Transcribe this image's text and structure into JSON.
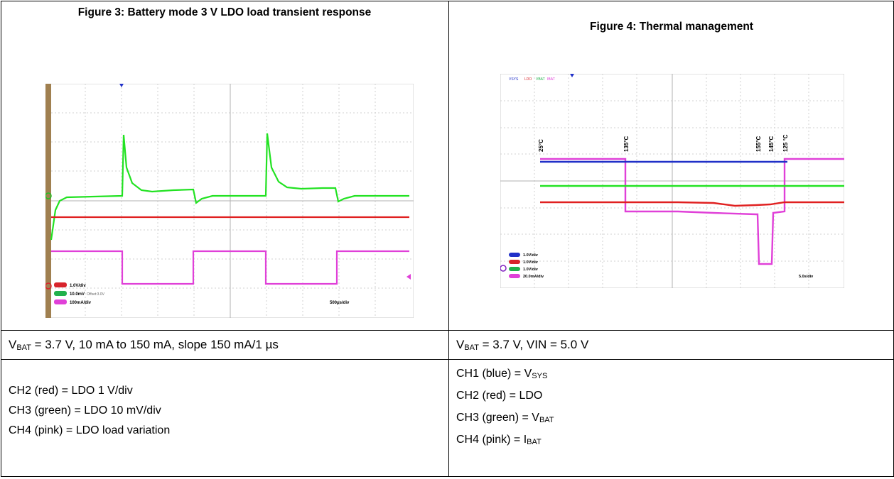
{
  "left": {
    "figure_title": "Figure 3: Battery mode 3 V LDO load transient response",
    "scope_legend": [
      {
        "badge": "CH2",
        "color": "#d8242c",
        "text": "1.0V/div"
      },
      {
        "badge": "CH3",
        "color": "#22b14c",
        "text": "10.0mV",
        "extra": "Offset:3.0V"
      },
      {
        "badge": "CH4",
        "color": "#e040d8",
        "text": "100mA/div"
      }
    ],
    "timebase": "500μs/div",
    "caption": {
      "v": "V",
      "sub": "BAT",
      "rest": " = 3.7 V, 10 mA to 150 mA, slope 150 mA/1 µs"
    },
    "channels": [
      "CH2 (red) = LDO 1 V/div",
      "CH3 (green) = LDO 10 mV/div",
      "CH4 (pink) = LDO load variation"
    ]
  },
  "right": {
    "figure_title": "Figure 4: Thermal management",
    "top_labels": [
      "VSYS",
      "LDO",
      "VBAT",
      "IBAT"
    ],
    "temps": [
      "25°C",
      "135°C",
      "155°C",
      "145°C",
      "125 °C"
    ],
    "scope_legend": [
      {
        "badge": "CH1",
        "color": "#2030c8",
        "text": "1.0V/div"
      },
      {
        "badge": "CH2",
        "color": "#d8242c",
        "text": "1.0V/div"
      },
      {
        "badge": "CH3",
        "color": "#22b14c",
        "text": "1.0V/div"
      },
      {
        "badge": "CH4",
        "color": "#e040d8",
        "text": "20.0mA/div"
      }
    ],
    "timebase": "5.0s/div",
    "caption": {
      "v": "V",
      "sub": "BAT",
      "rest": " = 3.7 V, VIN = 5.0 V"
    },
    "channels": [
      {
        "pre": "CH1 (blue) = V",
        "sub": "SYS"
      },
      {
        "pre": "CH2 (red) = LDO",
        "sub": ""
      },
      {
        "pre": "CH3 (green) = V",
        "sub": "BAT"
      },
      {
        "pre": "CH4 (pink) = I",
        "sub": "BAT"
      }
    ]
  },
  "colors": {
    "blue": "#2030c8",
    "red": "#d8242c",
    "green": "#22e222",
    "pink": "#e040d8"
  }
}
